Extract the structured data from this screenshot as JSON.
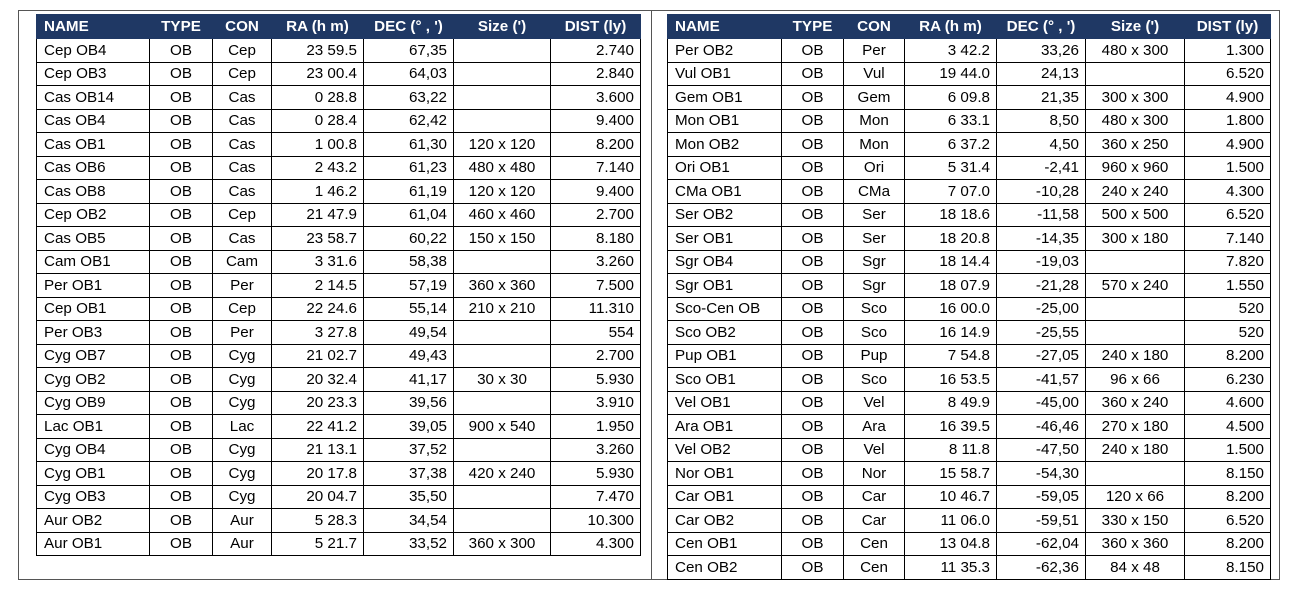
{
  "headers": [
    "NAME",
    "TYPE",
    "CON",
    "RA (h m)",
    "DEC (° , ')",
    "Size (')",
    "DIST (ly)"
  ],
  "left_rows": [
    [
      "Cep OB4",
      "OB",
      "Cep",
      "23 59.5",
      "67,35",
      "",
      "2.740"
    ],
    [
      "Cep OB3",
      "OB",
      "Cep",
      "23 00.4",
      "64,03",
      "",
      "2.840"
    ],
    [
      "Cas OB14",
      "OB",
      "Cas",
      "0 28.8",
      "63,22",
      "",
      "3.600"
    ],
    [
      "Cas OB4",
      "OB",
      "Cas",
      "0 28.4",
      "62,42",
      "",
      "9.400"
    ],
    [
      "Cas OB1",
      "OB",
      "Cas",
      "1 00.8",
      "61,30",
      "120 x 120",
      "8.200"
    ],
    [
      "Cas OB6",
      "OB",
      "Cas",
      "2 43.2",
      "61,23",
      "480 x 480",
      "7.140"
    ],
    [
      "Cas OB8",
      "OB",
      "Cas",
      "1 46.2",
      "61,19",
      "120 x 120",
      "9.400"
    ],
    [
      "Cep OB2",
      "OB",
      "Cep",
      "21 47.9",
      "61,04",
      "460 x 460",
      "2.700"
    ],
    [
      "Cas OB5",
      "OB",
      "Cas",
      "23 58.7",
      "60,22",
      "150 x 150",
      "8.180"
    ],
    [
      "Cam OB1",
      "OB",
      "Cam",
      "3 31.6",
      "58,38",
      "",
      "3.260"
    ],
    [
      "Per OB1",
      "OB",
      "Per",
      "2 14.5",
      "57,19",
      "360 x 360",
      "7.500"
    ],
    [
      "Cep OB1",
      "OB",
      "Cep",
      "22 24.6",
      "55,14",
      "210 x 210",
      "11.310"
    ],
    [
      "Per OB3",
      "OB",
      "Per",
      "3 27.8",
      "49,54",
      "",
      "554"
    ],
    [
      "Cyg OB7",
      "OB",
      "Cyg",
      "21 02.7",
      "49,43",
      "",
      "2.700"
    ],
    [
      "Cyg OB2",
      "OB",
      "Cyg",
      "20 32.4",
      "41,17",
      "30 x 30",
      "5.930"
    ],
    [
      "Cyg OB9",
      "OB",
      "Cyg",
      "20 23.3",
      "39,56",
      "",
      "3.910"
    ],
    [
      "Lac OB1",
      "OB",
      "Lac",
      "22 41.2",
      "39,05",
      "900 x 540",
      "1.950"
    ],
    [
      "Cyg OB4",
      "OB",
      "Cyg",
      "21 13.1",
      "37,52",
      "",
      "3.260"
    ],
    [
      "Cyg OB1",
      "OB",
      "Cyg",
      "20 17.8",
      "37,38",
      "420 x 240",
      "5.930"
    ],
    [
      "Cyg OB3",
      "OB",
      "Cyg",
      "20 04.7",
      "35,50",
      "",
      "7.470"
    ],
    [
      "Aur OB2",
      "OB",
      "Aur",
      "5 28.3",
      "34,54",
      "",
      "10.300"
    ],
    [
      "Aur OB1",
      "OB",
      "Aur",
      "5 21.7",
      "33,52",
      "360 x 300",
      "4.300"
    ]
  ],
  "right_rows": [
    [
      "Per OB2",
      "OB",
      "Per",
      "3 42.2",
      "33,26",
      "480 x 300",
      "1.300"
    ],
    [
      "Vul OB1",
      "OB",
      "Vul",
      "19 44.0",
      "24,13",
      "",
      "6.520"
    ],
    [
      "Gem OB1",
      "OB",
      "Gem",
      "6 09.8",
      "21,35",
      "300 x 300",
      "4.900"
    ],
    [
      "Mon OB1",
      "OB",
      "Mon",
      "6 33.1",
      "8,50",
      "480 x 300",
      "1.800"
    ],
    [
      "Mon OB2",
      "OB",
      "Mon",
      "6 37.2",
      "4,50",
      "360 x 250",
      "4.900"
    ],
    [
      "Ori OB1",
      "OB",
      "Ori",
      "5 31.4",
      "-2,41",
      "960 x 960",
      "1.500"
    ],
    [
      "CMa OB1",
      "OB",
      "CMa",
      "7 07.0",
      "-10,28",
      "240 x 240",
      "4.300"
    ],
    [
      "Ser OB2",
      "OB",
      "Ser",
      "18 18.6",
      "-11,58",
      "500 x 500",
      "6.520"
    ],
    [
      "Ser OB1",
      "OB",
      "Ser",
      "18 20.8",
      "-14,35",
      "300 x 180",
      "7.140"
    ],
    [
      "Sgr OB4",
      "OB",
      "Sgr",
      "18 14.4",
      "-19,03",
      "",
      "7.820"
    ],
    [
      "Sgr OB1",
      "OB",
      "Sgr",
      "18 07.9",
      "-21,28",
      "570 x 240",
      "1.550"
    ],
    [
      "Sco-Cen OB",
      "OB",
      "Sco",
      "16 00.0",
      "-25,00",
      "",
      "520"
    ],
    [
      "Sco OB2",
      "OB",
      "Sco",
      "16 14.9",
      "-25,55",
      "",
      "520"
    ],
    [
      "Pup OB1",
      "OB",
      "Pup",
      "7 54.8",
      "-27,05",
      "240 x 180",
      "8.200"
    ],
    [
      "Sco OB1",
      "OB",
      "Sco",
      "16 53.5",
      "-41,57",
      "96 x 66",
      "6.230"
    ],
    [
      "Vel OB1",
      "OB",
      "Vel",
      "8 49.9",
      "-45,00",
      "360 x 240",
      "4.600"
    ],
    [
      "Ara OB1",
      "OB",
      "Ara",
      "16 39.5",
      "-46,46",
      "270 x 180",
      "4.500"
    ],
    [
      "Vel OB2",
      "OB",
      "Vel",
      "8 11.8",
      "-47,50",
      "240 x 180",
      "1.500"
    ],
    [
      "Nor OB1",
      "OB",
      "Nor",
      "15 58.7",
      "-54,30",
      "",
      "8.150"
    ],
    [
      "Car OB1",
      "OB",
      "Car",
      "10 46.7",
      "-59,05",
      "120 x 66",
      "8.200"
    ],
    [
      "Car OB2",
      "OB",
      "Car",
      "11 06.0",
      "-59,51",
      "330 x 150",
      "6.520"
    ],
    [
      "Cen OB1",
      "OB",
      "Cen",
      "13 04.8",
      "-62,04",
      "360 x 360",
      "8.200"
    ],
    [
      "Cen OB2",
      "OB",
      "Cen",
      "11 35.3",
      "-62,36",
      "84 x 48",
      "8.150"
    ]
  ],
  "colors": {
    "header_bg": "#1f3864",
    "header_text": "#ffffff"
  }
}
